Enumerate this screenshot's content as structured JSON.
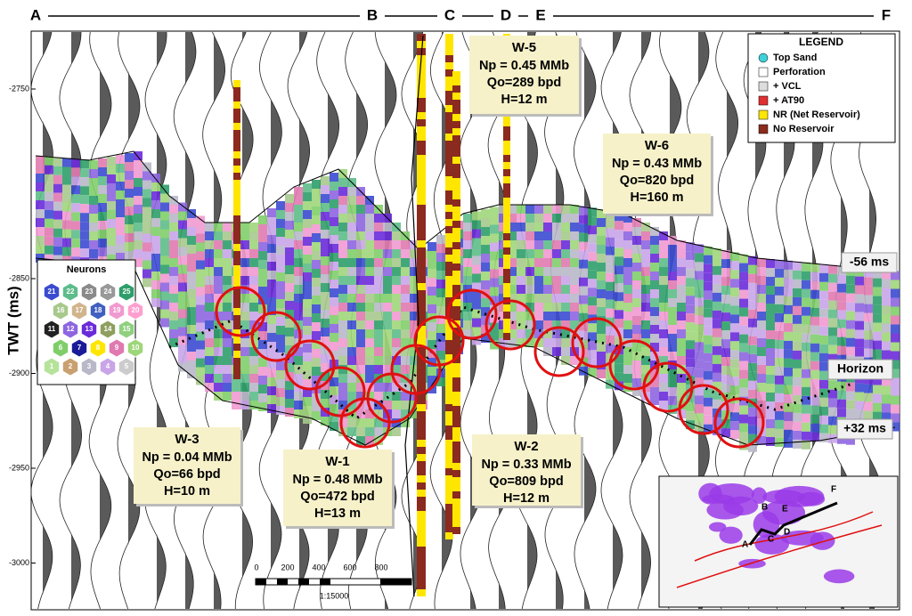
{
  "section_labels": [
    "A",
    "B",
    "C",
    "D",
    "E",
    "F"
  ],
  "axis": {
    "title": "TWT (ms)",
    "ticks": [
      -2750,
      -2850,
      -2900,
      -2950,
      -3000
    ]
  },
  "legend": {
    "title": "LEGEND",
    "items": [
      "Top Sand",
      "Perforation",
      "+ VCL",
      "+ AT90",
      "NR (Net Reservoir)",
      "No Reservoir"
    ]
  },
  "wells": [
    {
      "name": "W-5",
      "lines": [
        "Np = 0.45 MMb",
        "Qo=289 bpd",
        "H=12 m"
      ]
    },
    {
      "name": "W-6",
      "lines": [
        "Np = 0.43 MMb",
        "Qo=820 bpd",
        "H=160 m"
      ]
    },
    {
      "name": "W-3",
      "lines": [
        "Np = 0.04 MMb",
        "Qo=66 bpd",
        "H=10 m"
      ]
    },
    {
      "name": "W-1",
      "lines": [
        "Np = 0.48 MMb",
        "Qo=472 bpd",
        "H=13 m"
      ]
    },
    {
      "name": "W-2",
      "lines": [
        "Np = 0.33 MMb",
        "Qo=809 bpd",
        "H=12 m"
      ]
    }
  ],
  "neurons": {
    "title": "Neurons",
    "cells": [
      21,
      22,
      23,
      24,
      25,
      16,
      17,
      18,
      19,
      20,
      11,
      12,
      13,
      14,
      15,
      6,
      7,
      8,
      9,
      10,
      1,
      2,
      3,
      4,
      5
    ]
  },
  "annotations": [
    "-56 ms",
    "Horizon",
    "+32 ms"
  ],
  "scale_bar": {
    "ticks": [
      0,
      200,
      400,
      600,
      800
    ],
    "label": "1:15000"
  },
  "inset_map": {
    "labels": [
      "A",
      "B",
      "C",
      "D",
      "E",
      "F"
    ]
  }
}
